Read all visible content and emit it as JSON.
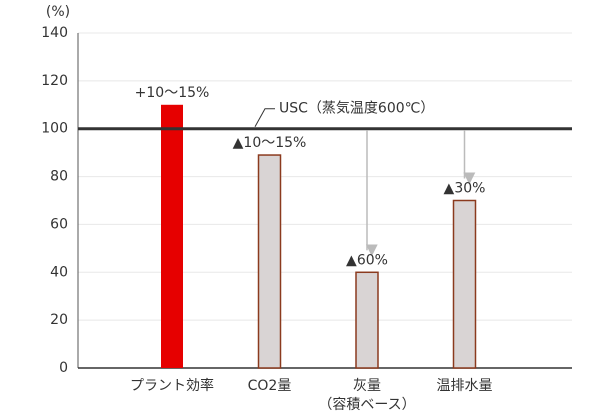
{
  "chart_data": {
    "type": "bar",
    "y_unit_label": "(%)",
    "categories": [
      "プラント効率",
      "CO2量",
      "灰量",
      "温排水量"
    ],
    "category_sublabels": [
      null,
      null,
      "（容積ベース）",
      null
    ],
    "values": [
      110,
      89,
      40,
      70
    ],
    "annotations": [
      "+10～15%",
      "▲10～15%",
      "▲60%",
      "▲30%"
    ],
    "colors": [
      "#e60000",
      "#d9d4d4",
      "#d9d4d4",
      "#d9d4d4"
    ],
    "reference": {
      "value": 100,
      "label": "USC（蒸気温度600℃）"
    },
    "ylim": [
      0,
      140
    ],
    "yticks": [
      0,
      20,
      40,
      60,
      80,
      100,
      120,
      140
    ]
  }
}
